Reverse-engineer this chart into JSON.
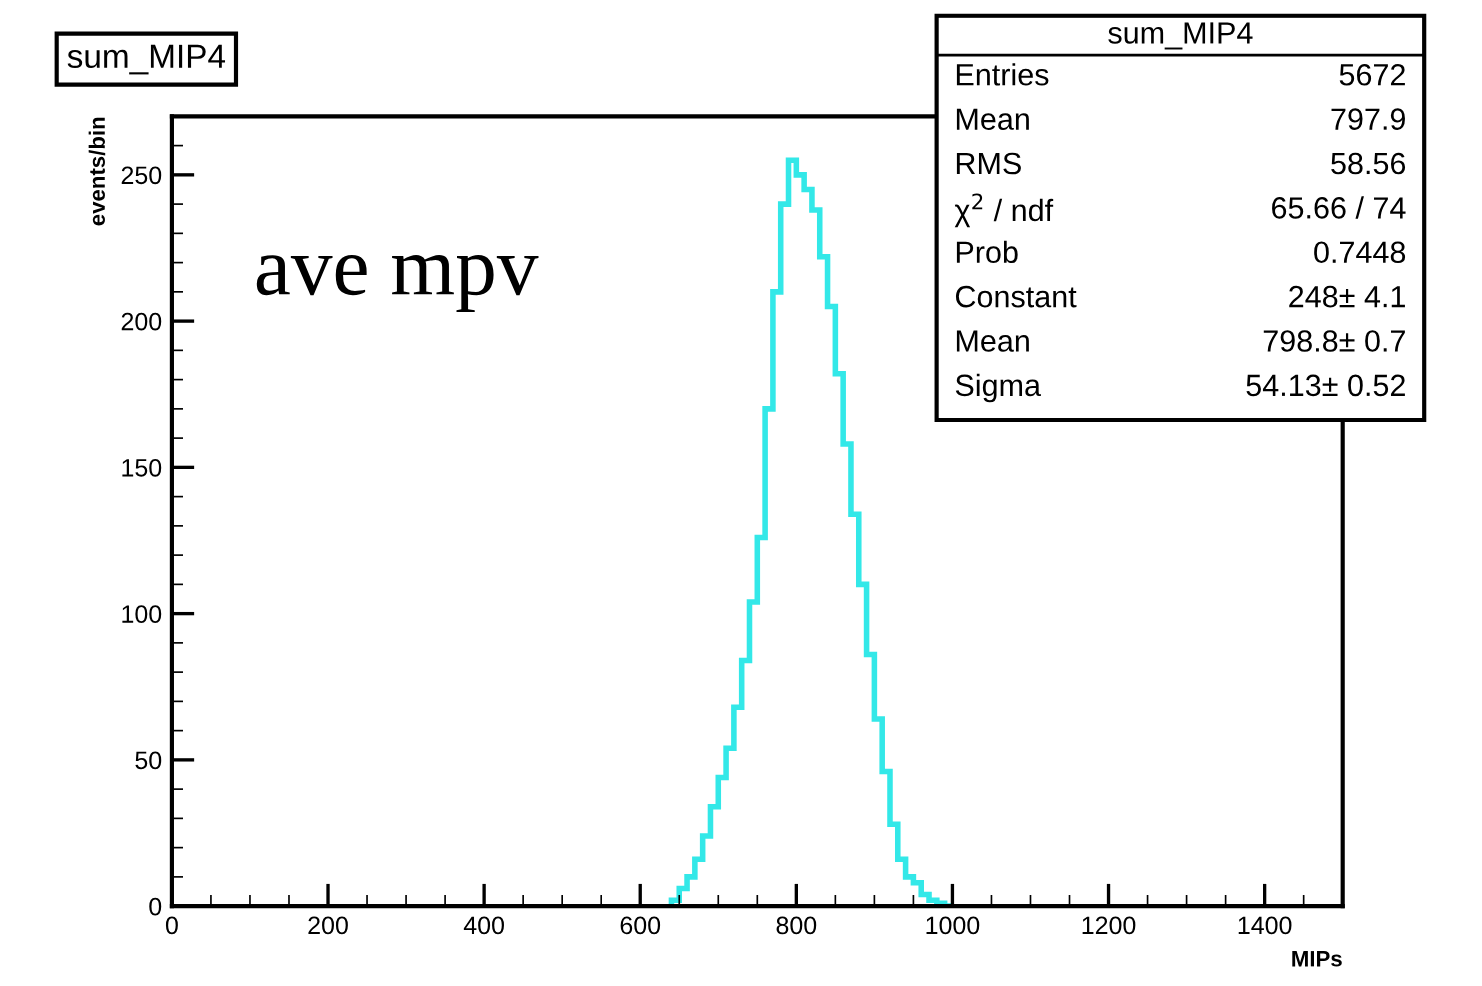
{
  "chart_data": {
    "type": "histogram",
    "title": "sum_MIP4",
    "xlabel": "MIPs",
    "ylabel": "events/bin",
    "bins": [
      640,
      650,
      660,
      670,
      680,
      690,
      700,
      710,
      720,
      730,
      740,
      750,
      760,
      770,
      780,
      790,
      800,
      810,
      820,
      830,
      840,
      850,
      860,
      870,
      880,
      890,
      900,
      910,
      920,
      930,
      940,
      950,
      960,
      970,
      980,
      990,
      1000
    ],
    "values": [
      2,
      6,
      10,
      16,
      24,
      34,
      44,
      54,
      68,
      84,
      104,
      126,
      170,
      210,
      240,
      255,
      250,
      245,
      238,
      222,
      205,
      182,
      158,
      134,
      110,
      86,
      64,
      46,
      28,
      16,
      10,
      8,
      4,
      2,
      1,
      0
    ],
    "color": "#33e8e8",
    "xlim": [
      0,
      1500
    ],
    "xticks": [
      0,
      200,
      400,
      600,
      800,
      1000,
      1200,
      1400
    ],
    "ylim": [
      0,
      270
    ],
    "yticks": [
      0,
      50,
      100,
      150,
      200,
      250
    ],
    "annotations": [
      "ave mpv",
      "sum_MIP4",
      "Entries",
      "5672",
      "Mean",
      "797.9",
      "RMS",
      "58.56",
      "χ$^{2}$ / ndf",
      "65.66 / 74",
      "Prob",
      "0.7448",
      "Constant",
      "248± 4.1",
      "Mean",
      "798.8± 0.7",
      "Sigma",
      "54.13± 0.52"
    ]
  }
}
